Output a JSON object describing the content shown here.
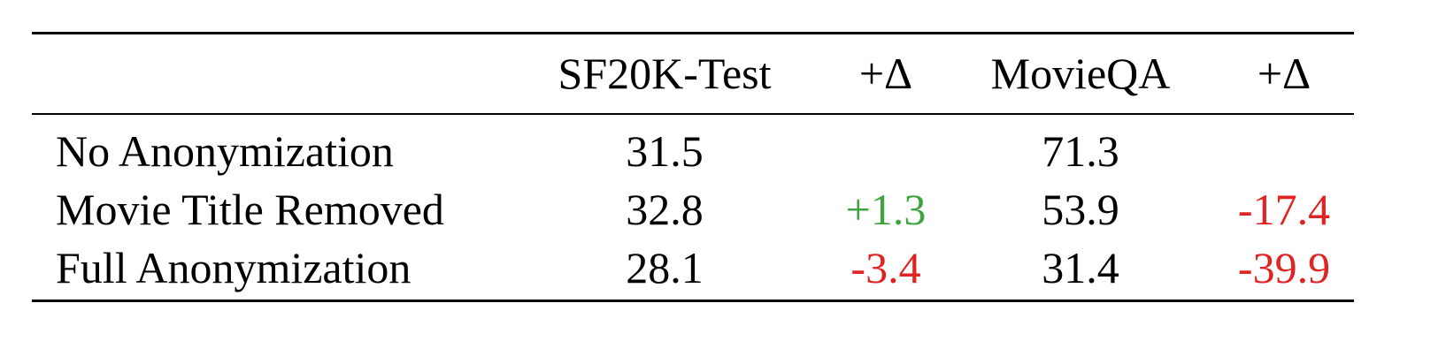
{
  "table": {
    "columns": [
      "",
      "SF20K-Test",
      "+Δ",
      "MovieQA",
      "+Δ"
    ],
    "rows": [
      {
        "label": "No Anonymization",
        "sf20k": "31.5",
        "sf20k_delta": "",
        "movieqa": "71.3",
        "movieqa_delta": ""
      },
      {
        "label": "Movie Title Removed",
        "sf20k": "32.8",
        "sf20k_delta": "+1.3",
        "movieqa": "53.9",
        "movieqa_delta": "-17.4"
      },
      {
        "label": "Full Anonymization",
        "sf20k": "28.1",
        "sf20k_delta": "-3.4",
        "movieqa": "31.4",
        "movieqa_delta": "-39.9"
      }
    ],
    "colors": {
      "positive": "#3fa33f",
      "negative": "#e02323"
    }
  }
}
